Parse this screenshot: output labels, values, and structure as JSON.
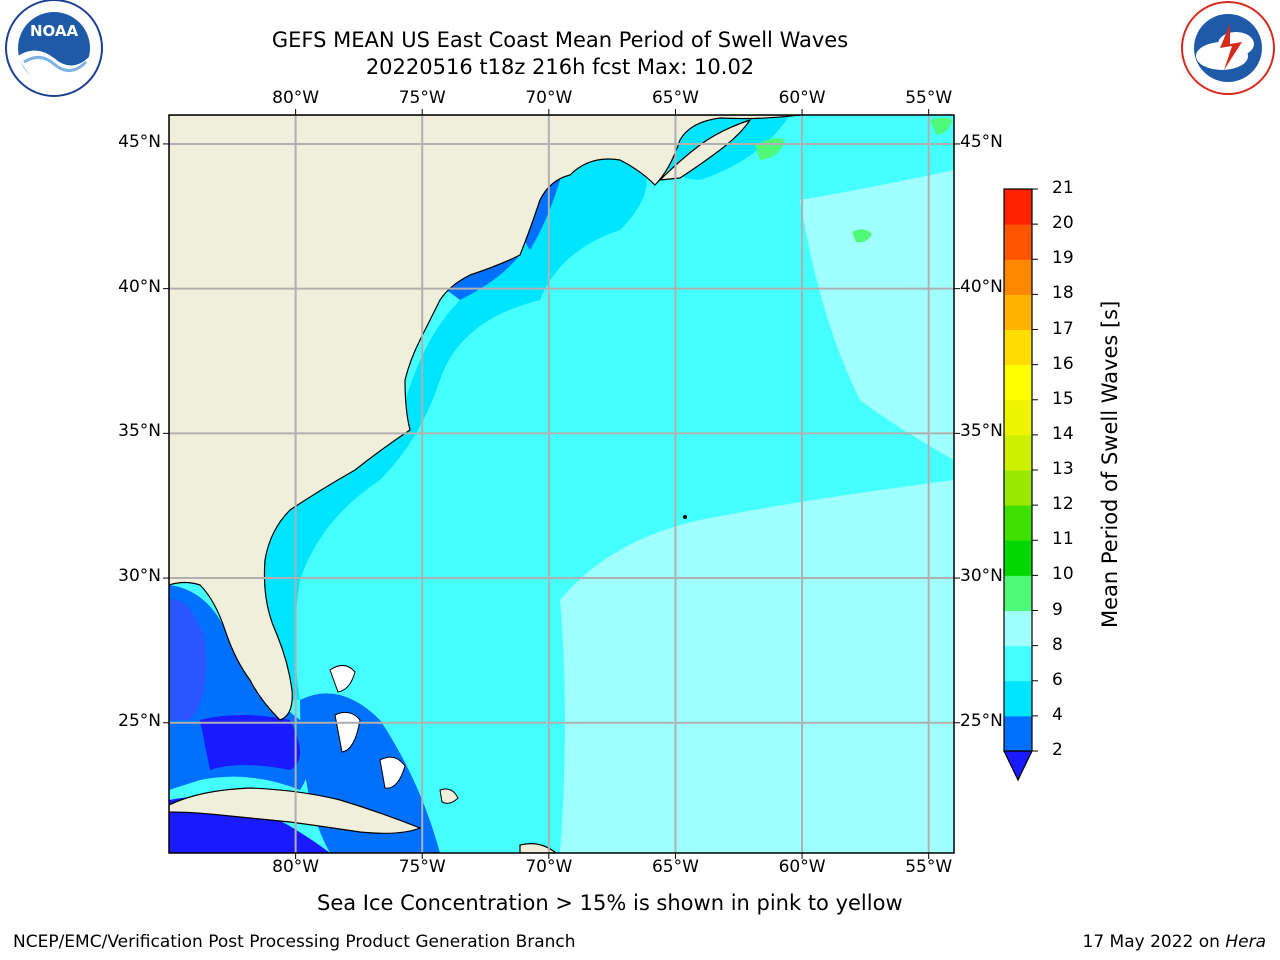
{
  "header": {
    "title_line1": "GEFS MEAN US East Coast Mean Period of Swell Waves",
    "title_line2": "20220516 t18z 216h fcst   Max: 10.02"
  },
  "logos": {
    "left": "noaa-logo",
    "right": "national-weather-service-logo",
    "left_text": "NOAA",
    "right_ring_text": "NATIONAL WEATHER SERVICE",
    "left_ring_text": "NATIONAL OCEANIC AND ATMOSPHERIC ADMINISTRATION · U.S. DEPARTMENT OF COMMERCE"
  },
  "map": {
    "projection": "plate-carree",
    "lon_range": [
      -85,
      -54
    ],
    "lat_range": [
      20.5,
      46
    ],
    "lon_ticks": [
      -80,
      -75,
      -70,
      -65,
      -60,
      -55
    ],
    "lat_ticks": [
      25,
      30,
      35,
      40,
      45
    ],
    "lon_labels": [
      "80°W",
      "75°W",
      "70°W",
      "65°W",
      "60°W",
      "55°W"
    ],
    "lat_labels": [
      "25°N",
      "30°N",
      "35°N",
      "40°N",
      "45°N"
    ],
    "grid": true,
    "land_color": "#efefdc",
    "coastline_color": "#000000"
  },
  "colorbar": {
    "title": "Mean Period of Swell Waves [s]",
    "ticks": [
      "2",
      "4",
      "6",
      "8",
      "9",
      "10",
      "11",
      "12",
      "13",
      "14",
      "15",
      "16",
      "17",
      "18",
      "19",
      "20",
      "21"
    ],
    "colors": [
      "#0070ff",
      "#00e5ff",
      "#45ffff",
      "#a0ffff",
      "#50f878",
      "#00d800",
      "#40e000",
      "#99e800",
      "#ccf000",
      "#eef400",
      "#ffff00",
      "#ffdd00",
      "#ffb300",
      "#ff8800",
      "#ff5500",
      "#ff2200",
      "#ff0000"
    ],
    "extend_min_color": "#1a1aff",
    "extend": "min"
  },
  "fields": {
    "dominant_band": "6-8 s",
    "western_margin_band": "2-4 s",
    "eastern_band": "8-9 s",
    "max_value": "10.02"
  },
  "footer": {
    "note": "Sea Ice Concentration > 15% is shown in pink to yellow",
    "credit": "NCEP/EMC/Verification Post Processing Product Generation Branch",
    "date": "17 May 2022 on",
    "date_host": "Hera"
  }
}
